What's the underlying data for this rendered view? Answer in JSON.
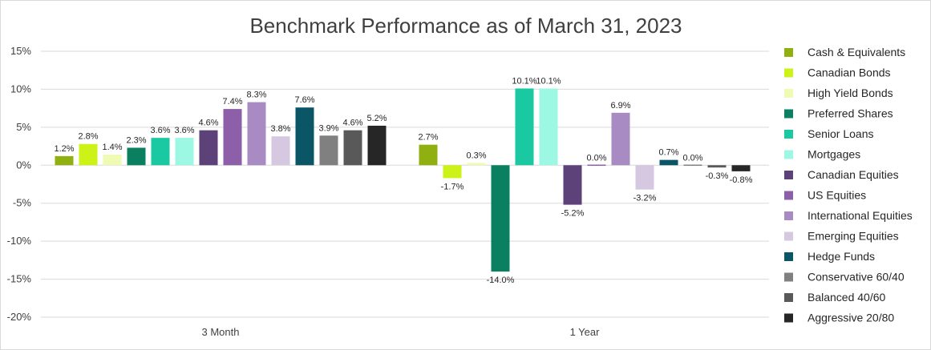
{
  "chart_data": {
    "type": "bar",
    "title": "Benchmark Performance as of March 31, 2023",
    "categories": [
      "3 Month",
      "1 Year"
    ],
    "ylim": [
      -20,
      15
    ],
    "yticks": [
      15,
      10,
      5,
      0,
      -5,
      -10,
      -15,
      -20
    ],
    "ytick_labels": [
      "15%",
      "10%",
      "5%",
      "0%",
      "-5%",
      "-10%",
      "-15%",
      "-20%"
    ],
    "grid": true,
    "legend_position": "right",
    "series": [
      {
        "name": "Cash & Equivalents",
        "color": "#8fb010",
        "values": [
          1.2,
          2.7
        ],
        "labels": [
          "1.2%",
          "2.7%"
        ]
      },
      {
        "name": "Canadian Bonds",
        "color": "#ccf218",
        "values": [
          2.8,
          -1.7
        ],
        "labels": [
          "2.8%",
          "-1.7%"
        ]
      },
      {
        "name": "High Yield Bonds",
        "color": "#effab2",
        "values": [
          1.4,
          0.3
        ],
        "labels": [
          "1.4%",
          "0.3%"
        ]
      },
      {
        "name": "Preferred Shares",
        "color": "#0b8061",
        "values": [
          2.3,
          -14.0
        ],
        "labels": [
          "2.3%",
          "-14.0%"
        ]
      },
      {
        "name": "Senior Loans",
        "color": "#1ac9a2",
        "values": [
          3.6,
          10.1
        ],
        "labels": [
          "3.6%",
          "10.1%"
        ]
      },
      {
        "name": "Mortgages",
        "color": "#9cf7e3",
        "values": [
          3.6,
          10.1
        ],
        "labels": [
          "3.6%",
          "10.1%"
        ]
      },
      {
        "name": "Canadian Equities",
        "color": "#5d4179",
        "values": [
          4.6,
          -5.2
        ],
        "labels": [
          "4.6%",
          "-5.2%"
        ]
      },
      {
        "name": "US Equities",
        "color": "#8d5fa9",
        "values": [
          7.4,
          0.0
        ],
        "labels": [
          "7.4%",
          "0.0%"
        ]
      },
      {
        "name": "International Equities",
        "color": "#a98bc4",
        "values": [
          8.3,
          6.9
        ],
        "labels": [
          "8.3%",
          "6.9%"
        ]
      },
      {
        "name": "Emerging Equities",
        "color": "#d5c8e0",
        "values": [
          3.8,
          -3.2
        ],
        "labels": [
          "3.8%",
          "-3.2%"
        ]
      },
      {
        "name": "Hedge Funds",
        "color": "#0a5566",
        "values": [
          7.6,
          0.7
        ],
        "labels": [
          "7.6%",
          "0.7%"
        ]
      },
      {
        "name": "Conservative 60/40",
        "color": "#808080",
        "values": [
          3.9,
          0.0
        ],
        "labels": [
          "3.9%",
          "0.0%"
        ]
      },
      {
        "name": "Balanced 40/60",
        "color": "#595959",
        "values": [
          4.6,
          -0.3
        ],
        "labels": [
          "4.6%",
          "-0.3%"
        ]
      },
      {
        "name": "Aggressive 20/80",
        "color": "#262626",
        "values": [
          5.2,
          -0.8
        ],
        "labels": [
          "5.2%",
          "-0.8%"
        ]
      }
    ]
  }
}
